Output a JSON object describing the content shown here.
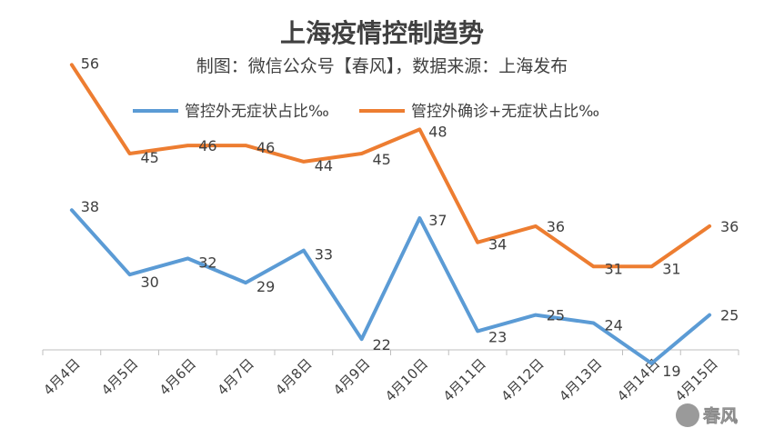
{
  "chart_data": {
    "type": "line",
    "title": "上海疫情控制趋势",
    "subtitle": "制图：微信公众号【春风】，数据来源：上海发布",
    "categories": [
      "4月4日",
      "4月5日",
      "4月6日",
      "4月7日",
      "4月8日",
      "4月9日",
      "4月10日",
      "4月11日",
      "4月12日",
      "4月13日",
      "4月14日",
      "4月15日"
    ],
    "series": [
      {
        "name": "管控外无症状占比‰",
        "color": "#5b9bd5",
        "values": [
          38,
          30,
          32,
          29,
          33,
          22,
          37,
          23,
          25,
          24,
          19,
          25
        ]
      },
      {
        "name": "管控外确诊+无症状占比‰",
        "color": "#ed7d31",
        "values": [
          56,
          45,
          46,
          46,
          44,
          45,
          48,
          34,
          36,
          31,
          31,
          36
        ]
      }
    ],
    "legend_position": "top",
    "grid": false,
    "ylim": [
      0,
      70
    ]
  },
  "watermark": {
    "text": "春风"
  }
}
